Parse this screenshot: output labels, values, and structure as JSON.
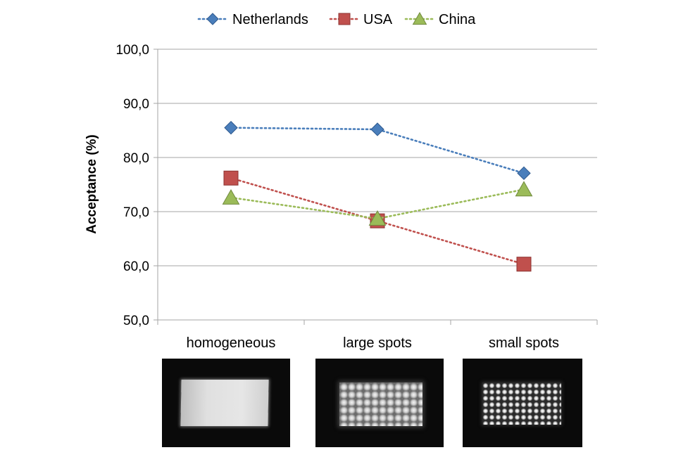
{
  "chart_data": {
    "type": "line",
    "title": "",
    "xlabel": "",
    "ylabel": "Acceptance (%)",
    "ylim": [
      50,
      100
    ],
    "yticks": [
      "50,0",
      "60,0",
      "70,0",
      "80,0",
      "90,0",
      "100,0"
    ],
    "grid": true,
    "legend_position": "top",
    "categories": [
      "homogeneous",
      "large spots",
      "small spots"
    ],
    "series": [
      {
        "name": "Netherlands",
        "values": [
          85.5,
          85.2,
          77.1
        ],
        "color": "#4a7ebb",
        "marker": "diamond",
        "line": "dotted"
      },
      {
        "name": "USA",
        "values": [
          76.2,
          68.3,
          60.3
        ],
        "color": "#c0504d",
        "marker": "square",
        "line": "dotted"
      },
      {
        "name": "China",
        "values": [
          72.6,
          68.7,
          74.1
        ],
        "color": "#9bbb59",
        "marker": "triangle",
        "line": "dotted"
      }
    ]
  },
  "images": [
    {
      "label": "homogeneous",
      "pattern": "uniform"
    },
    {
      "label": "large spots",
      "pattern": "large dot grid"
    },
    {
      "label": "small spots",
      "pattern": "small dot grid"
    }
  ]
}
